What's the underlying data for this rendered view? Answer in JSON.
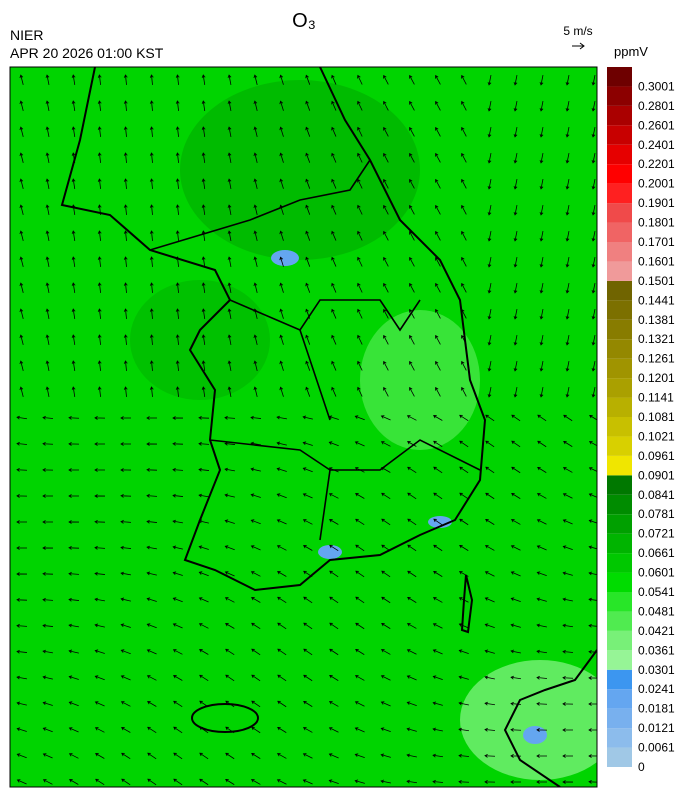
{
  "header": {
    "title": "O₃",
    "agency": "NIER",
    "datetime": "APR 20 2026 01:00 KST",
    "wind_scale": "5 m/s",
    "unit": "ppmV"
  },
  "colorbar": {
    "levels": [
      0,
      0.0061,
      0.0121,
      0.0181,
      0.0241,
      0.0301,
      0.0361,
      0.0421,
      0.0481,
      0.0541,
      0.0601,
      0.0661,
      0.0721,
      0.0781,
      0.0841,
      0.0901,
      0.0961,
      0.1021,
      0.1081,
      0.1141,
      0.1201,
      0.1261,
      0.1321,
      0.1381,
      0.1441,
      0.1501,
      0.1601,
      0.1701,
      0.1801,
      0.1901,
      0.2001,
      0.2201,
      0.2401,
      0.2601,
      0.2801,
      0.3001
    ],
    "colors": [
      "#a0c8e6",
      "#8cbcec",
      "#78b0ee",
      "#64a6f0",
      "#3c96f0",
      "#96f596",
      "#78f078",
      "#50eb50",
      "#28e628",
      "#00dc00",
      "#00c800",
      "#00b400",
      "#00a000",
      "#008c00",
      "#007800",
      "#f0e600",
      "#d8d000",
      "#c8c000",
      "#b8b000",
      "#aaa000",
      "#a09400",
      "#948800",
      "#887c00",
      "#7c7000",
      "#706400",
      "#f09a9a",
      "#f08080",
      "#f06464",
      "#f04a4a",
      "#ff2020",
      "#ff0000",
      "#e60000",
      "#c80000",
      "#aa0000",
      "#8c0000",
      "#6e0000"
    ]
  }
}
